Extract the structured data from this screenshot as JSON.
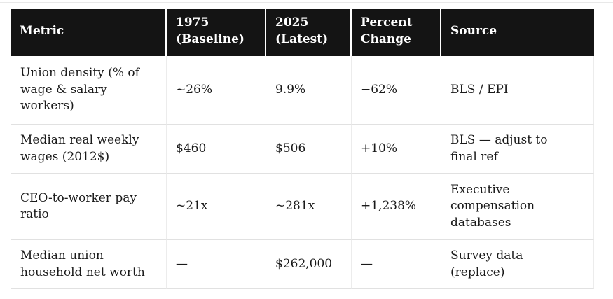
{
  "colors": {
    "header_bg": "#141414",
    "header_text": "#ffffff",
    "body_text": "#1a1a1a",
    "row_border": "#e1e1e1",
    "column_border": "#ececec",
    "page_rule": "#e8e8e8"
  },
  "table": {
    "columns": [
      {
        "label": "Metric"
      },
      {
        "label": "1975\n(Baseline)"
      },
      {
        "label": "2025\n(Latest)"
      },
      {
        "label": "Percent\nChange"
      },
      {
        "label": "Source"
      }
    ],
    "rows": [
      {
        "metric": "Union density (% of\nwage & salary\nworkers)",
        "baseline": "~26%",
        "latest": "9.9%",
        "change": "−62%",
        "source": "BLS / EPI"
      },
      {
        "metric": "Median real weekly\nwages (2012$)",
        "baseline": "$460",
        "latest": "$506",
        "change": "+10%",
        "source": "BLS — adjust to\nfinal ref"
      },
      {
        "metric": "CEO-to-worker pay\nratio",
        "baseline": "~21x",
        "latest": "~281x",
        "change": "+1,238%",
        "source": "Executive\ncompensation\ndatabases"
      },
      {
        "metric": "Median union\nhousehold net worth",
        "baseline": "—",
        "latest": "$262,000",
        "change": "—",
        "source": "Survey data\n(replace)"
      }
    ]
  }
}
